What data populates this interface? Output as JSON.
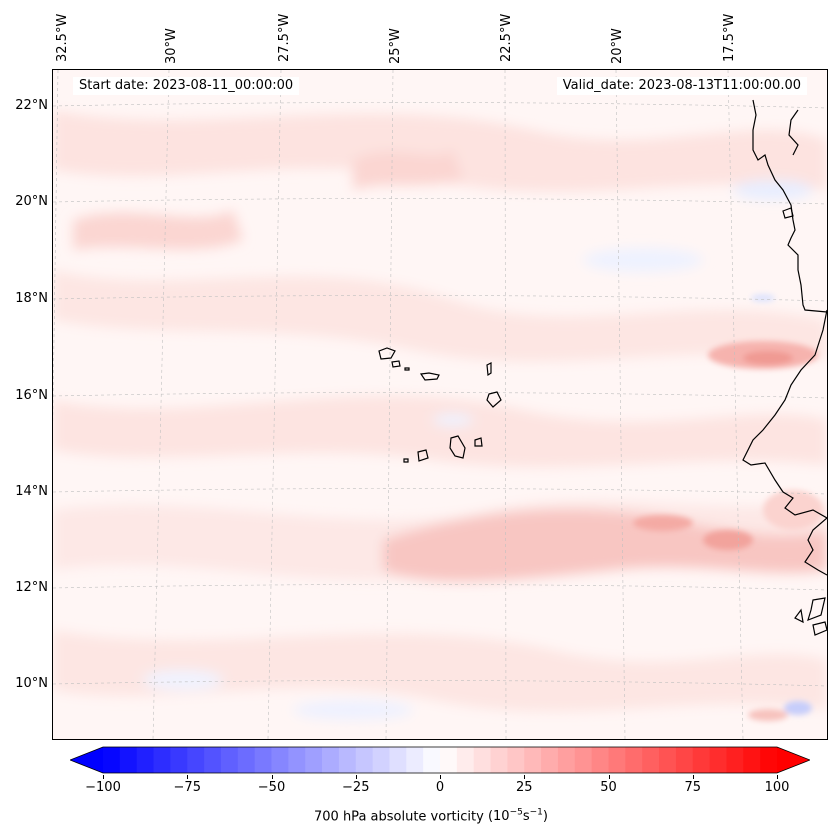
{
  "map": {
    "title_left": "Start date: 2023-08-11_00:00:00",
    "title_right": "Valid_date: 2023-08-13T11:00:00.00",
    "lon_labels": [
      "32.5°W",
      "30°W",
      "27.5°W",
      "25°W",
      "22.5°W",
      "20°W",
      "17.5°W"
    ],
    "lat_labels": [
      "22°N",
      "20°N",
      "18°N",
      "16°N",
      "14°N",
      "12°N",
      "10°N"
    ],
    "variable": "700 hPa absolute vorticity",
    "units_prefix": "(10",
    "units_exp1": "−5",
    "units_mid": "s",
    "units_exp2": "−1",
    "units_suffix": ")",
    "colormap": "bwr",
    "color_min": "#0000ff",
    "color_mid": "#ffffff",
    "color_max": "#ff0000"
  },
  "colorbar": {
    "min": -100,
    "max": 100,
    "ticks": [
      "−100",
      "−75",
      "−50",
      "−25",
      "0",
      "25",
      "50",
      "75",
      "100"
    ],
    "levels": 40
  }
}
